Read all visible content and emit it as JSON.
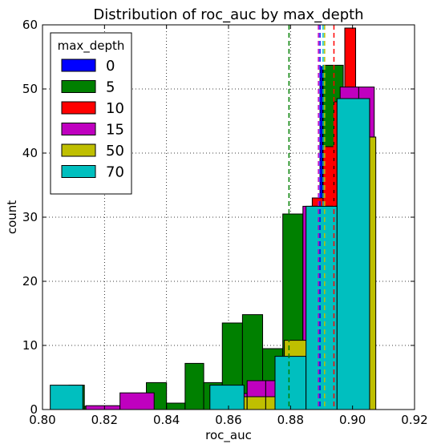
{
  "chart_data": {
    "type": "histogram",
    "title": "Distribution of roc_auc by max_depth",
    "xlabel": "roc_auc",
    "ylabel": "count",
    "xlim": [
      0.8,
      0.92
    ],
    "ylim": [
      0,
      60
    ],
    "xticks": [
      "0.80",
      "0.82",
      "0.84",
      "0.86",
      "0.88",
      "0.90",
      "0.92"
    ],
    "yticks": [
      "0",
      "10",
      "20",
      "30",
      "40",
      "50",
      "60"
    ],
    "xtick_values": [
      0.8,
      0.82,
      0.84,
      0.86,
      0.88,
      0.9,
      0.92
    ],
    "ytick_values": [
      0,
      10,
      20,
      30,
      40,
      50,
      60
    ],
    "grid": true,
    "legend_title": "max_depth",
    "legend_position": "top-left",
    "series": [
      {
        "name": "0",
        "color": "#0000ff",
        "mean": 0.8895,
        "bins": [
          {
            "x0": 0.8887,
            "x1": 0.8895,
            "count": 31.5
          },
          {
            "x0": 0.8895,
            "x1": 0.8903,
            "count": 53.5
          }
        ]
      },
      {
        "name": "5",
        "color": "#008000",
        "mean": 0.8795,
        "bins": [
          {
            "x0": 0.8085,
            "x1": 0.8135,
            "count": 3.8
          },
          {
            "x0": 0.8135,
            "x1": 0.8335,
            "count": 0.5
          },
          {
            "x0": 0.8335,
            "x1": 0.84,
            "count": 4.2
          },
          {
            "x0": 0.84,
            "x1": 0.846,
            "count": 1.0
          },
          {
            "x0": 0.846,
            "x1": 0.852,
            "count": 7.2
          },
          {
            "x0": 0.852,
            "x1": 0.858,
            "count": 4.2
          },
          {
            "x0": 0.858,
            "x1": 0.8645,
            "count": 13.5
          },
          {
            "x0": 0.8645,
            "x1": 0.871,
            "count": 14.8
          },
          {
            "x0": 0.871,
            "x1": 0.8775,
            "count": 9.5
          },
          {
            "x0": 0.8775,
            "x1": 0.884,
            "count": 30.5
          },
          {
            "x0": 0.884,
            "x1": 0.8905,
            "count": 28.0
          },
          {
            "x0": 0.8905,
            "x1": 0.897,
            "count": 53.7
          }
        ]
      },
      {
        "name": "10",
        "color": "#ff0000",
        "mean": 0.894,
        "bins": [
          {
            "x0": 0.884,
            "x1": 0.887,
            "count": 17.2
          },
          {
            "x0": 0.887,
            "x1": 0.8905,
            "count": 33.0
          },
          {
            "x0": 0.8905,
            "x1": 0.894,
            "count": 41.0
          },
          {
            "x0": 0.894,
            "x1": 0.8975,
            "count": 48.0
          },
          {
            "x0": 0.8975,
            "x1": 0.901,
            "count": 59.5
          }
        ]
      },
      {
        "name": "15",
        "color": "#bf00bf",
        "mean": 0.889,
        "bins": [
          {
            "x0": 0.814,
            "x1": 0.825,
            "count": 0.6
          },
          {
            "x0": 0.825,
            "x1": 0.836,
            "count": 2.6
          },
          {
            "x0": 0.86,
            "x1": 0.866,
            "count": 2.5
          },
          {
            "x0": 0.866,
            "x1": 0.872,
            "count": 4.5
          },
          {
            "x0": 0.872,
            "x1": 0.878,
            "count": 4.5
          },
          {
            "x0": 0.878,
            "x1": 0.884,
            "count": 10.0
          },
          {
            "x0": 0.884,
            "x1": 0.89,
            "count": 31.7
          },
          {
            "x0": 0.89,
            "x1": 0.896,
            "count": 31.7
          },
          {
            "x0": 0.896,
            "x1": 0.902,
            "count": 50.3
          },
          {
            "x0": 0.902,
            "x1": 0.907,
            "count": 50.3
          }
        ]
      },
      {
        "name": "50",
        "color": "#bfbf00",
        "mean": 0.891,
        "bins": [
          {
            "x0": 0.86,
            "x1": 0.866,
            "count": 2.0
          },
          {
            "x0": 0.866,
            "x1": 0.872,
            "count": 2.0
          },
          {
            "x0": 0.872,
            "x1": 0.878,
            "count": 2.0
          },
          {
            "x0": 0.878,
            "x1": 0.8865,
            "count": 10.8
          },
          {
            "x0": 0.8865,
            "x1": 0.895,
            "count": 31.7
          },
          {
            "x0": 0.895,
            "x1": 0.9055,
            "count": 48.5
          },
          {
            "x0": 0.9055,
            "x1": 0.9075,
            "count": 42.5
          }
        ]
      },
      {
        "name": "70",
        "color": "#00bfbf",
        "mean": 0.8905,
        "bins": [
          {
            "x0": 0.8025,
            "x1": 0.813,
            "count": 3.8
          },
          {
            "x0": 0.854,
            "x1": 0.865,
            "count": 3.8
          },
          {
            "x0": 0.875,
            "x1": 0.885,
            "count": 8.3
          },
          {
            "x0": 0.885,
            "x1": 0.895,
            "count": 31.7
          },
          {
            "x0": 0.895,
            "x1": 0.9055,
            "count": 48.5
          }
        ]
      }
    ]
  }
}
